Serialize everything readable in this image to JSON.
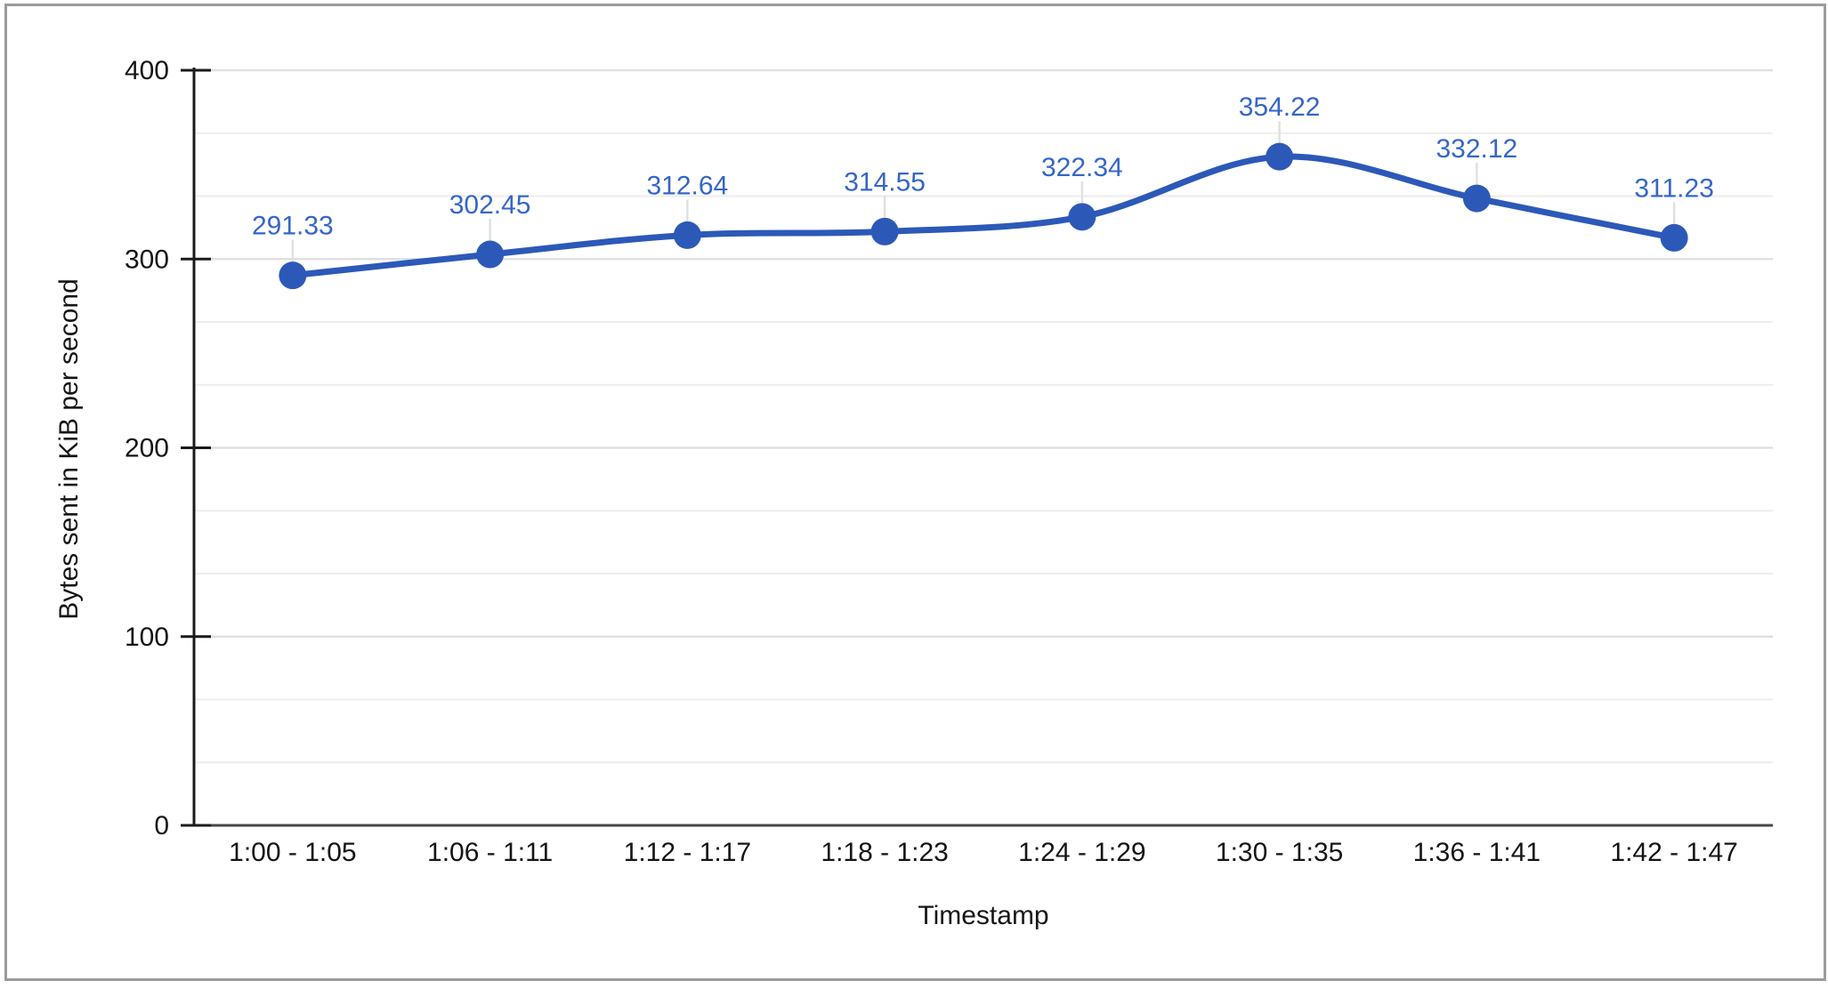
{
  "frame": {
    "border_color": "#9B9B9B",
    "background": "#FFFFFF"
  },
  "chart_data": {
    "type": "line",
    "x": [
      "1:00 - 1:05",
      "1:06 - 1:11",
      "1:12 - 1:17",
      "1:18 - 1:23",
      "1:24 - 1:29",
      "1:30 - 1:35",
      "1:36 - 1:41",
      "1:42 - 1:47"
    ],
    "series": [
      {
        "values": [
          291.33,
          302.45,
          312.64,
          314.55,
          322.34,
          354.22,
          332.12,
          311.23
        ],
        "point_labels": [
          "291.33",
          "302.45",
          "312.64",
          "314.55",
          "322.34",
          "354.22",
          "332.12",
          "311.23"
        ],
        "color": "#2C59B8",
        "label_color": "#3566C8",
        "smooth": true,
        "markers": true
      }
    ],
    "xlabel": "Timestamp",
    "ylabel": "Bytes sent in KiB per second",
    "ylim": [
      0,
      400
    ],
    "yticks": [
      0,
      100,
      200,
      300,
      400
    ],
    "minor_grid_divisions": 3,
    "grid": "horizontal",
    "legend": "none",
    "styles": {
      "axis_color": "#1A1A1A",
      "baseline_color": "#474747",
      "major_grid_color": "#E0E0E0",
      "minor_grid_color": "#EDEDED",
      "stem_color": "#E0E0E0",
      "tick_label_color": "#151515",
      "title_color": "#151515"
    }
  }
}
